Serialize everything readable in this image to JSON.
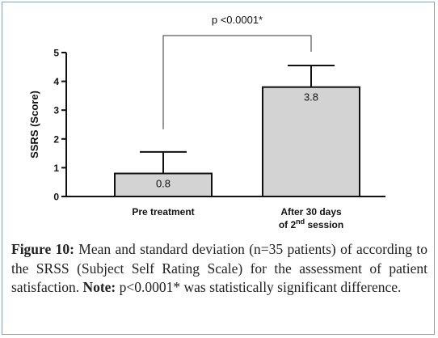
{
  "chart_data": {
    "type": "bar",
    "categories": [
      "Pre treatment",
      "After 30 days of 2nd session"
    ],
    "category_labels": [
      {
        "lines": [
          {
            "text": "Pre treatment"
          }
        ]
      },
      {
        "lines": [
          {
            "text": "After 30 days"
          },
          {
            "text": "of 2",
            "sup": "nd",
            "rest": " session"
          }
        ]
      }
    ],
    "series": [
      {
        "values": [
          0.8,
          3.8
        ],
        "error": [
          0.75,
          0.75
        ]
      }
    ],
    "data_labels": [
      "0.8",
      "3.8"
    ],
    "ylabel": "SSRS (Score)",
    "ylim": [
      0,
      5
    ],
    "yticks": [
      0,
      1,
      2,
      3,
      4,
      5
    ],
    "grid": false,
    "bar_color": "#d3d3d3",
    "significance": {
      "between": [
        0,
        1
      ],
      "label": "p <0.0001*"
    }
  },
  "caption": {
    "figure_label": "Figure 10:",
    "text": " Mean and standard deviation (n=35 patients) of according to the SRSS (Subject Self Rating Scale) for the assessment of patient satisfaction. ",
    "note_label": "Note:",
    "note_text": " p<0.0001* was statistically significant difference."
  }
}
